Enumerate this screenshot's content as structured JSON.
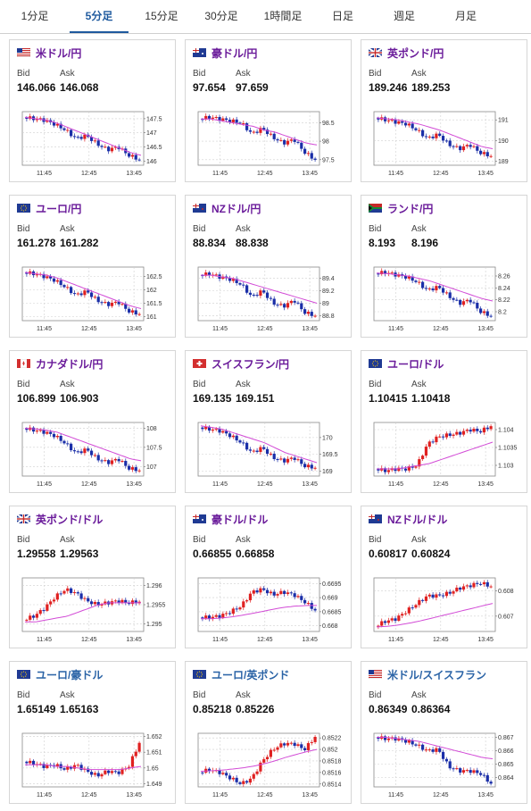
{
  "tabs": [
    {
      "label": "1分足"
    },
    {
      "label": "5分足"
    },
    {
      "label": "15分足"
    },
    {
      "label": "30分足"
    },
    {
      "label": "1時間足"
    },
    {
      "label": "日足"
    },
    {
      "label": "週足"
    },
    {
      "label": "月足"
    }
  ],
  "active_tab": 1,
  "labels": {
    "bid": "Bid",
    "ask": "Ask"
  },
  "colors": {
    "up": "#e02020",
    "down": "#1a2ea8",
    "ma": "#d24bd6",
    "ma2": "#19b3c8",
    "purple_title": "#6a1b9a",
    "blue_title": "#2a63a6"
  },
  "cards": [
    {
      "pair": "米ドル/円",
      "flag": "us",
      "bid": "146.066",
      "ask": "146.068",
      "chart_data": {
        "type": "candlestick",
        "x_ticks": [
          "11:45",
          "12:45",
          "13:45"
        ],
        "y_ticks": [
          "147.5",
          "147",
          "146.5",
          "146"
        ],
        "ylim": [
          145.85,
          147.75
        ],
        "ma": [
          147.55,
          147.5,
          147.45,
          147.35,
          147.2,
          147.05,
          146.9,
          146.75,
          146.6,
          146.45,
          146.3,
          146.2
        ],
        "close": [
          147.55,
          147.5,
          147.45,
          147.3,
          147.1,
          146.8,
          146.9,
          146.6,
          146.4,
          146.5,
          146.2,
          146.05
        ]
      }
    },
    {
      "pair": "豪ドル/円",
      "flag": "au",
      "bid": "97.654",
      "ask": "97.659",
      "chart_data": {
        "type": "candlestick",
        "x_ticks": [
          "11:45",
          "12:45",
          "13:45"
        ],
        "y_ticks": [
          "98.5",
          "98",
          "97.5"
        ],
        "ylim": [
          97.35,
          98.8
        ],
        "ma": [
          98.6,
          98.6,
          98.55,
          98.5,
          98.45,
          98.4,
          98.3,
          98.25,
          98.15,
          98.05,
          97.95,
          97.9
        ],
        "close": [
          98.6,
          98.65,
          98.6,
          98.55,
          98.5,
          98.2,
          98.35,
          98.1,
          97.95,
          98.05,
          97.7,
          97.5
        ]
      }
    },
    {
      "pair": "英ポンド/円",
      "flag": "gb",
      "bid": "189.246",
      "ask": "189.253",
      "chart_data": {
        "type": "candlestick",
        "x_ticks": [
          "11:45",
          "12:45",
          "13:45"
        ],
        "y_ticks": [
          "191",
          "190",
          "189"
        ],
        "ylim": [
          188.8,
          191.4
        ],
        "ma": [
          191.1,
          191.05,
          191.0,
          190.9,
          190.8,
          190.65,
          190.5,
          190.3,
          190.1,
          189.9,
          189.7,
          189.6
        ],
        "close": [
          191.1,
          191.0,
          190.9,
          190.8,
          190.5,
          190.1,
          190.3,
          189.8,
          189.6,
          189.8,
          189.4,
          189.25
        ]
      }
    },
    {
      "pair": "ユーロ/円",
      "flag": "eu",
      "bid": "161.278",
      "ask": "161.282",
      "chart_data": {
        "type": "candlestick",
        "x_ticks": [
          "11:45",
          "12:45",
          "13:45"
        ],
        "y_ticks": [
          "162.5",
          "162",
          "161.5",
          "161"
        ],
        "ylim": [
          160.85,
          162.85
        ],
        "ma": [
          162.65,
          162.6,
          162.55,
          162.45,
          162.3,
          162.15,
          162.0,
          161.85,
          161.7,
          161.55,
          161.4,
          161.3
        ],
        "close": [
          162.65,
          162.6,
          162.5,
          162.35,
          162.1,
          161.8,
          161.95,
          161.6,
          161.45,
          161.55,
          161.2,
          161.1
        ]
      }
    },
    {
      "pair": "NZドル/円",
      "flag": "nz",
      "bid": "88.834",
      "ask": "88.838",
      "chart_data": {
        "type": "candlestick",
        "x_ticks": [
          "11:45",
          "12:45",
          "13:45"
        ],
        "y_ticks": [
          "89.4",
          "89.2",
          "89",
          "88.8"
        ],
        "ylim": [
          88.72,
          89.58
        ],
        "ma": [
          89.45,
          89.45,
          89.42,
          89.4,
          89.35,
          89.3,
          89.25,
          89.2,
          89.15,
          89.1,
          89.05,
          89.0
        ],
        "close": [
          89.45,
          89.47,
          89.42,
          89.38,
          89.3,
          89.1,
          89.2,
          89.0,
          88.95,
          89.05,
          88.85,
          88.8
        ]
      }
    },
    {
      "pair": "ランド/円",
      "flag": "za",
      "bid": "8.193",
      "ask": "8.196",
      "chart_data": {
        "type": "candlestick",
        "x_ticks": [
          "11:45",
          "12:45",
          "13:45"
        ],
        "y_ticks": [
          "8.26",
          "8.24",
          "8.22",
          "8.2"
        ],
        "ylim": [
          8.185,
          8.275
        ],
        "ma": [
          8.265,
          8.264,
          8.262,
          8.26,
          8.256,
          8.252,
          8.246,
          8.24,
          8.234,
          8.228,
          8.222,
          8.218
        ],
        "close": [
          8.264,
          8.266,
          8.262,
          8.258,
          8.25,
          8.236,
          8.242,
          8.226,
          8.214,
          8.22,
          8.2,
          8.193
        ]
      }
    },
    {
      "pair": "カナダドル/円",
      "flag": "ca",
      "bid": "106.899",
      "ask": "106.903",
      "chart_data": {
        "type": "candlestick",
        "x_ticks": [
          "11:45",
          "12:45",
          "13:45"
        ],
        "y_ticks": [
          "108",
          "107.5",
          "107"
        ],
        "ylim": [
          106.75,
          108.15
        ],
        "ma": [
          108.0,
          107.98,
          107.95,
          107.9,
          107.8,
          107.7,
          107.6,
          107.5,
          107.4,
          107.3,
          107.2,
          107.15
        ],
        "close": [
          108.0,
          107.95,
          107.9,
          107.8,
          107.6,
          107.35,
          107.45,
          107.2,
          107.1,
          107.2,
          106.95,
          106.9
        ]
      }
    },
    {
      "pair": "スイスフラン/円",
      "flag": "ch",
      "bid": "169.135",
      "ask": "169.151",
      "chart_data": {
        "type": "candlestick",
        "x_ticks": [
          "11:45",
          "12:45",
          "13:45"
        ],
        "y_ticks": [
          "170",
          "169.5",
          "169"
        ],
        "ylim": [
          168.85,
          170.45
        ],
        "ma": [
          170.35,
          170.3,
          170.25,
          170.15,
          170.05,
          169.95,
          169.85,
          169.7,
          169.55,
          169.45,
          169.35,
          169.25
        ],
        "close": [
          170.3,
          170.25,
          170.2,
          170.05,
          169.85,
          169.55,
          169.7,
          169.4,
          169.3,
          169.4,
          169.15,
          169.1
        ]
      }
    },
    {
      "pair": "ユーロ/ドル",
      "flag": "eu",
      "bid": "1.10415",
      "ask": "1.10418",
      "chart_data": {
        "type": "candlestick",
        "x_ticks": [
          "11:45",
          "12:45",
          "13:45"
        ],
        "y_ticks": [
          "1.104",
          "1.1035",
          "1.103"
        ],
        "ylim": [
          1.1027,
          1.1042
        ],
        "ma": [
          1.1029,
          1.1029,
          1.1029,
          1.10295,
          1.103,
          1.10305,
          1.10315,
          1.10325,
          1.10335,
          1.10345,
          1.10355,
          1.10365
        ],
        "close": [
          1.1029,
          1.10285,
          1.1029,
          1.1029,
          1.103,
          1.1036,
          1.1038,
          1.10385,
          1.1039,
          1.104,
          1.10395,
          1.1041
        ]
      }
    },
    {
      "pair": "英ポンド/ドル",
      "flag": "gb",
      "bid": "1.29558",
      "ask": "1.29563",
      "chart_data": {
        "type": "candlestick",
        "x_ticks": [
          "11:45",
          "12:45",
          "13:45"
        ],
        "y_ticks": [
          "1.296",
          "1.2955",
          "1.295"
        ],
        "ylim": [
          1.2948,
          1.2962
        ],
        "ma": [
          1.29505,
          1.29505,
          1.2951,
          1.29515,
          1.2952,
          1.2953,
          1.2954,
          1.2955,
          1.29555,
          1.29555,
          1.29555,
          1.29555
        ],
        "close": [
          1.2951,
          1.2952,
          1.2954,
          1.2957,
          1.2959,
          1.2958,
          1.2956,
          1.2955,
          1.29555,
          1.2956,
          1.29555,
          1.29558
        ]
      }
    },
    {
      "pair": "豪ドル/ドル",
      "flag": "au",
      "bid": "0.66855",
      "ask": "0.66858",
      "chart_data": {
        "type": "candlestick",
        "x_ticks": [
          "11:45",
          "12:45",
          "13:45"
        ],
        "y_ticks": [
          "0.6695",
          "0.669",
          "0.6685",
          "0.668"
        ],
        "ylim": [
          0.6678,
          0.6697
        ],
        "ma": [
          0.66825,
          0.66825,
          0.66828,
          0.66832,
          0.66838,
          0.66845,
          0.66852,
          0.6686,
          0.66866,
          0.6687,
          0.66872,
          0.66872
        ],
        "close": [
          0.6683,
          0.6683,
          0.66835,
          0.6685,
          0.6687,
          0.6692,
          0.6693,
          0.6691,
          0.6692,
          0.6691,
          0.66885,
          0.66855
        ]
      }
    },
    {
      "pair": "NZドル/ドル",
      "flag": "nz",
      "bid": "0.60817",
      "ask": "0.60824",
      "chart_data": {
        "type": "candlestick",
        "x_ticks": [
          "11:45",
          "12:45",
          "13:45"
        ],
        "y_ticks": [
          "0.608",
          "0.607"
        ],
        "ylim": [
          0.6064,
          0.6085
        ],
        "ma": [
          0.60658,
          0.6066,
          0.60665,
          0.60672,
          0.6068,
          0.6069,
          0.607,
          0.6071,
          0.6072,
          0.6073,
          0.6074,
          0.6075
        ],
        "close": [
          0.6066,
          0.6068,
          0.6069,
          0.6072,
          0.6075,
          0.6078,
          0.6078,
          0.6079,
          0.6081,
          0.6082,
          0.6083,
          0.60817
        ]
      }
    },
    {
      "pair": "ユーロ/豪ドル",
      "flag": "eu",
      "bid": "1.65149",
      "ask": "1.65163",
      "chart_data": {
        "type": "candlestick",
        "x_ticks": [
          "11:45",
          "12:45",
          "13:45"
        ],
        "y_ticks": [
          "1.652",
          "1.651",
          "1.65",
          "1.649"
        ],
        "ylim": [
          1.6488,
          1.6522
        ],
        "ma": [
          1.6502,
          1.6502,
          1.6502,
          1.6501,
          1.6501,
          1.65,
          1.6499,
          1.6499,
          1.6499,
          1.6499,
          1.65,
          1.6501
        ],
        "close": [
          1.6504,
          1.6503,
          1.6501,
          1.6502,
          1.6499,
          1.6502,
          1.6498,
          1.6495,
          1.6498,
          1.6497,
          1.6501,
          1.6516
        ]
      }
    },
    {
      "pair": "ユーロ/英ポンド",
      "flag": "eu",
      "bid": "0.85218",
      "ask": "0.85226",
      "chart_data": {
        "type": "candlestick",
        "x_ticks": [
          "11:45",
          "12:45",
          "13:45"
        ],
        "y_ticks": [
          "0.8522",
          "0.852",
          "0.8518",
          "0.8516",
          "0.8514"
        ],
        "ylim": [
          0.85135,
          0.85228
        ],
        "ma": [
          0.85162,
          0.85163,
          0.85164,
          0.85166,
          0.85168,
          0.85171,
          0.85175,
          0.8518,
          0.85186,
          0.85191,
          0.85196,
          0.852
        ],
        "close": [
          0.8516,
          0.85165,
          0.8516,
          0.8515,
          0.8514,
          0.8515,
          0.8518,
          0.852,
          0.8521,
          0.8521,
          0.852,
          0.85222
        ]
      }
    },
    {
      "pair": "米ドル/スイスフラン",
      "flag": "us",
      "bid": "0.86349",
      "ask": "0.86364",
      "chart_data": {
        "type": "candlestick",
        "x_ticks": [
          "11:45",
          "12:45",
          "13:45"
        ],
        "y_ticks": [
          "0.867",
          "0.866",
          "0.865",
          "0.864"
        ],
        "ylim": [
          0.8633,
          0.8673
        ],
        "ma": [
          0.867,
          0.867,
          0.8669,
          0.8668,
          0.8667,
          0.8665,
          0.8663,
          0.8661,
          0.8659,
          0.8657,
          0.8655,
          0.8654
        ],
        "close": [
          0.867,
          0.8669,
          0.8669,
          0.8667,
          0.8664,
          0.866,
          0.8661,
          0.8648,
          0.8645,
          0.8645,
          0.8643,
          0.86355
        ]
      }
    }
  ]
}
